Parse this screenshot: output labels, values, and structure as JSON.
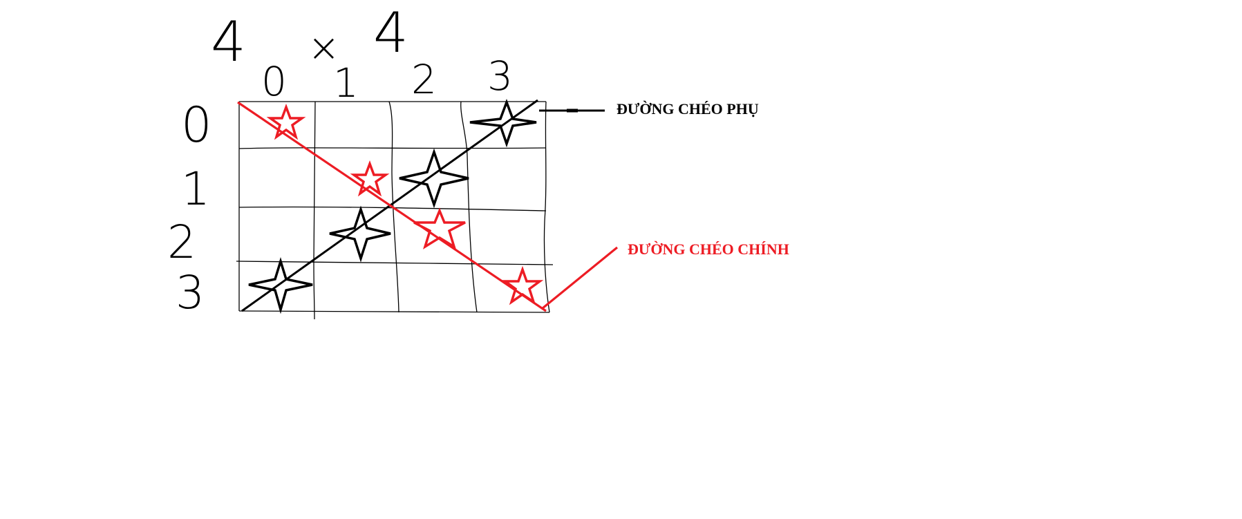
{
  "title": {
    "rows": "4",
    "times": "×",
    "cols": "4"
  },
  "column_indices": [
    "0",
    "1",
    "2",
    "3"
  ],
  "row_indices": [
    "0",
    "1",
    "2",
    "3"
  ],
  "labels": {
    "anti_diagonal": "ĐƯỜNG CHÉO PHỤ",
    "main_diagonal": "ĐƯỜNG CHÉO CHÍNH"
  },
  "colors": {
    "main_diagonal": "#ed1c24",
    "anti_diagonal": "#000000",
    "grid": "#000000",
    "background": "#ffffff"
  },
  "stars": {
    "main_diagonal_cells": [
      [
        0,
        0
      ],
      [
        1,
        1
      ],
      [
        2,
        2
      ],
      [
        3,
        3
      ]
    ],
    "anti_diagonal_cells": [
      [
        0,
        3
      ],
      [
        1,
        2
      ],
      [
        2,
        1
      ],
      [
        3,
        0
      ]
    ]
  }
}
